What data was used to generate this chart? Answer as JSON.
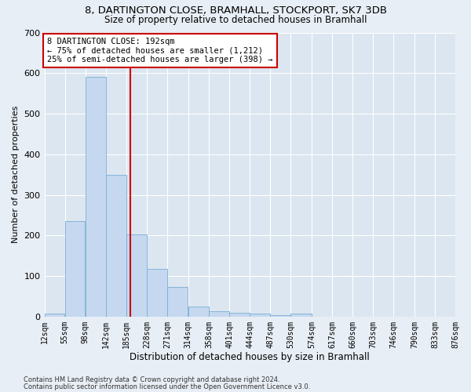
{
  "title": "8, DARTINGTON CLOSE, BRAMHALL, STOCKPORT, SK7 3DB",
  "subtitle": "Size of property relative to detached houses in Bramhall",
  "xlabel": "Distribution of detached houses by size in Bramhall",
  "ylabel": "Number of detached properties",
  "bar_values": [
    8,
    235,
    590,
    350,
    203,
    117,
    73,
    25,
    14,
    10,
    7,
    4,
    8,
    0,
    0,
    0,
    0,
    0,
    0,
    0
  ],
  "bin_edges": [
    12,
    55,
    98,
    142,
    185,
    228,
    271,
    314,
    358,
    401,
    444,
    487,
    530,
    574,
    617,
    660,
    703,
    746,
    790,
    833,
    876
  ],
  "tick_labels": [
    "12sqm",
    "55sqm",
    "98sqm",
    "142sqm",
    "185sqm",
    "228sqm",
    "271sqm",
    "314sqm",
    "358sqm",
    "401sqm",
    "444sqm",
    "487sqm",
    "530sqm",
    "574sqm",
    "617sqm",
    "660sqm",
    "703sqm",
    "746sqm",
    "790sqm",
    "833sqm",
    "876sqm"
  ],
  "bar_color": "#c5d8f0",
  "bar_edge_color": "#7aadd4",
  "ylim": [
    0,
    700
  ],
  "yticks": [
    0,
    100,
    200,
    300,
    400,
    500,
    600,
    700
  ],
  "vline_x": 192,
  "vline_color": "#cc0000",
  "annotation_text": "8 DARTINGTON CLOSE: 192sqm\n← 75% of detached houses are smaller (1,212)\n25% of semi-detached houses are larger (398) →",
  "annotation_box_color": "#ffffff",
  "annotation_box_edge": "#cc0000",
  "footer_line1": "Contains HM Land Registry data © Crown copyright and database right 2024.",
  "footer_line2": "Contains public sector information licensed under the Open Government Licence v3.0.",
  "fig_bg_color": "#e8eef5",
  "plot_bg_color": "#dce6f0",
  "grid_color": "#ffffff",
  "title_fontsize": 9.5,
  "subtitle_fontsize": 8.5,
  "tick_fontsize": 7,
  "ylabel_fontsize": 8,
  "xlabel_fontsize": 8.5,
  "annotation_fontsize": 7.5
}
